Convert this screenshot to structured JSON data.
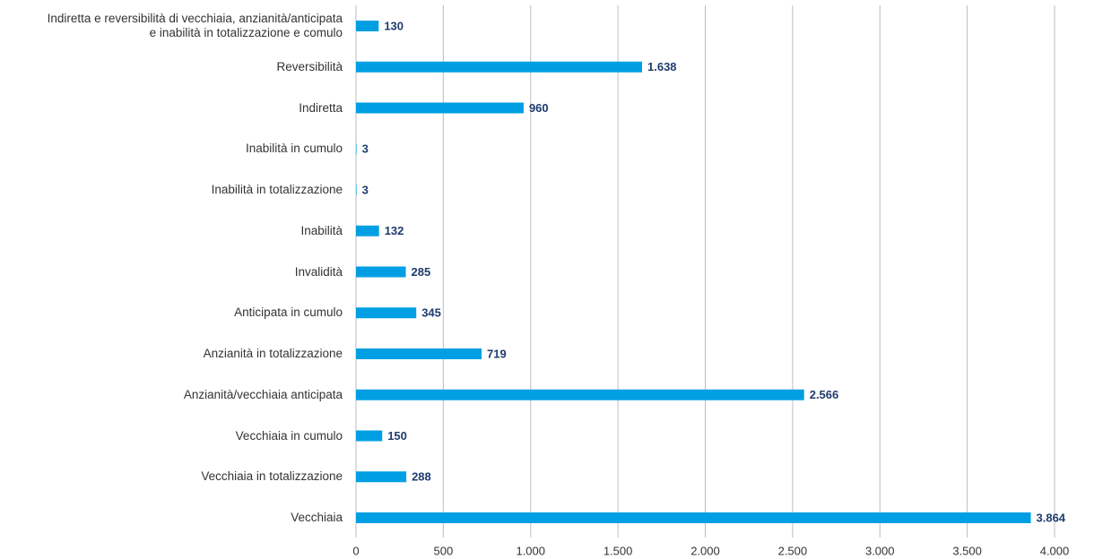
{
  "chart_data": {
    "type": "hbar",
    "categories": [
      "Indiretta e reversibilità di vecchiaia, anzianità/anticipata\ne inabilità in totalizzazione e comulo",
      "Reversibilità",
      "Indiretta",
      "Inabilità in cumulo",
      "Inabilità in totalizzazione",
      "Inabilità",
      "Invalidità",
      "Anticipata in cumulo",
      "Anzianità in totalizzazione",
      "Anzianità/vecchiaia anticipata",
      "Vecchiaia in cumulo",
      "Vecchiaia in totalizzazione",
      "Vecchiaia"
    ],
    "values": [
      130,
      1638,
      960,
      3,
      3,
      132,
      285,
      345,
      719,
      2566,
      150,
      288,
      3864
    ],
    "value_labels": [
      "130",
      "1.638",
      "960",
      "3",
      "3",
      "132",
      "285",
      "345",
      "719",
      "2.566",
      "150",
      "288",
      "3.864"
    ],
    "color": "#009fe3",
    "xlim": [
      0,
      4000
    ],
    "xticks": [
      0,
      500,
      {
        "value": 1000,
        "label": "1.000"
      },
      {
        "value": 1500,
        "label": "1.500"
      },
      {
        "value": 2000,
        "label": "2.000"
      },
      {
        "value": 2500,
        "label": "2.500"
      },
      {
        "value": 3000,
        "label": "3.000"
      },
      {
        "value": 3500,
        "label": "3.500"
      },
      {
        "value": 4000,
        "label": "4.000"
      }
    ],
    "grid": true
  }
}
